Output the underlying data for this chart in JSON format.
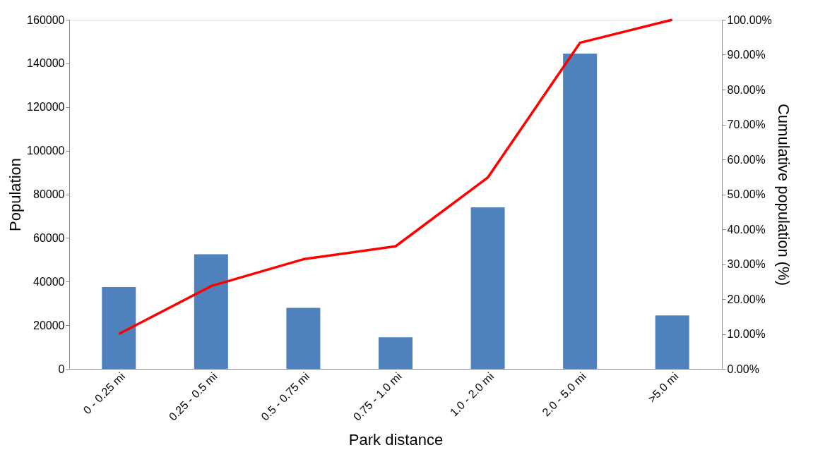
{
  "chart_data": {
    "type": "bar",
    "xlabel": "Park distance",
    "ylabel": "Population",
    "y2label": "Cumulative population (%)",
    "categories": [
      "0 - 0.25 mi",
      "0.25 - 0.5 mi",
      "0.5 - 0.75 mi",
      "0.75 - 1.0 mi",
      "1.0 - 2.0 mi",
      "2.0 - 5.0 mi",
      ">5.0 mi"
    ],
    "series": [
      {
        "color": "#4f81bd",
        "values": [
          37500,
          52500,
          28000,
          14500,
          74000,
          144500,
          24500
        ]
      },
      {
        "type": "line",
        "axis": "y2",
        "color": "#ff0000",
        "values": [
          10,
          23.7,
          31.4,
          35.1,
          54.8,
          93.4,
          100
        ]
      }
    ],
    "ylim": [
      0,
      160000
    ],
    "yticks": [
      0,
      20000,
      40000,
      60000,
      80000,
      100000,
      120000,
      140000,
      160000
    ],
    "y2lim": [
      0,
      100
    ],
    "y2ticks": [
      {
        "value": 0,
        "label": "0.00%"
      },
      {
        "value": 10,
        "label": "10.00%"
      },
      {
        "value": 20,
        "label": "20.00%"
      },
      {
        "value": 30,
        "label": "30.00%"
      },
      {
        "value": 40,
        "label": "40.00%"
      },
      {
        "value": 50,
        "label": "50.00%"
      },
      {
        "value": 60,
        "label": "60.00%"
      },
      {
        "value": 70,
        "label": "70.00%"
      },
      {
        "value": 80,
        "label": "80.00%"
      },
      {
        "value": 90,
        "label": "90.00%"
      },
      {
        "value": 100,
        "label": "100.00%"
      }
    ],
    "grid": false,
    "marker": "none",
    "line_style": "solid"
  }
}
